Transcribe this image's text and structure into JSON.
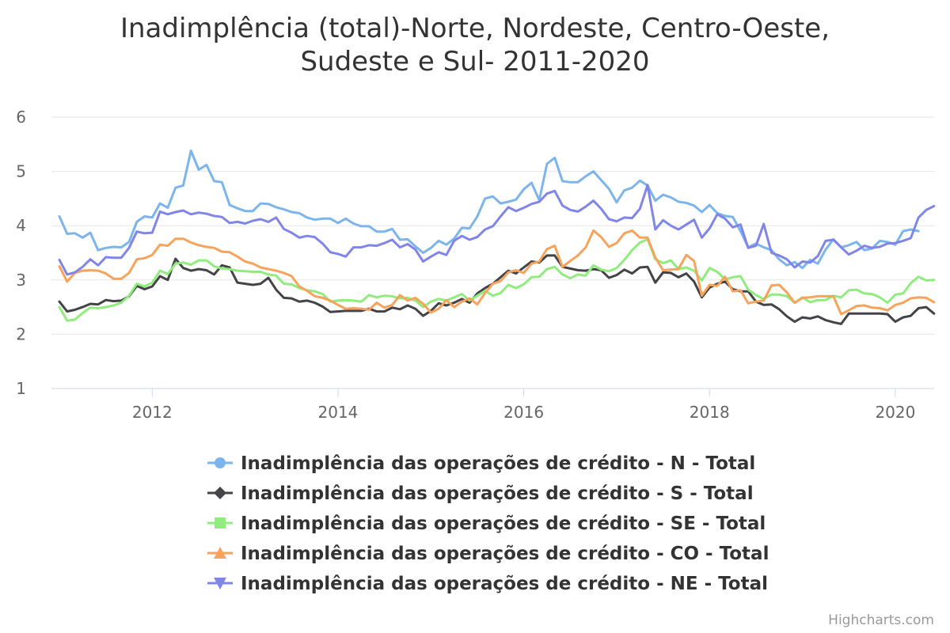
{
  "chart_data": {
    "type": "line",
    "title_lines": [
      "Inadimplência (total)-Norte, Nordeste, Centro-Oeste,",
      "Sudeste e Sul- 2011-2020"
    ],
    "credits": "Highcharts.com",
    "xlabel": "",
    "ylabel": "",
    "x_start": "2011-01",
    "x_end": "2020-05",
    "x_ticks": [
      "2012",
      "2014",
      "2016",
      "2018",
      "2020"
    ],
    "y_ticks": [
      "1",
      "2",
      "3",
      "4",
      "5",
      "6"
    ],
    "ylim": [
      1,
      6
    ],
    "legend_position": "bottom",
    "grid": true,
    "series": [
      {
        "name": "Inadimplência das operações de crédito - N - Total",
        "color": "#7cb5ec",
        "marker": "circle",
        "values": [
          4.17,
          3.85,
          3.86,
          3.78,
          3.87,
          3.55,
          3.59,
          3.61,
          3.6,
          3.7,
          4.07,
          4.17,
          4.15,
          4.41,
          4.33,
          4.7,
          4.74,
          5.38,
          5.03,
          5.12,
          4.82,
          4.8,
          4.38,
          4.32,
          4.27,
          4.27,
          4.41,
          4.4,
          4.34,
          4.3,
          4.25,
          4.23,
          4.15,
          4.11,
          4.13,
          4.13,
          4.05,
          4.13,
          4.04,
          3.99,
          3.99,
          3.89,
          3.89,
          3.94,
          3.74,
          3.75,
          3.62,
          3.5,
          3.59,
          3.72,
          3.65,
          3.76,
          3.96,
          3.95,
          4.17,
          4.5,
          4.54,
          4.41,
          4.44,
          4.48,
          4.67,
          4.79,
          4.47,
          5.14,
          5.25,
          4.82,
          4.8,
          4.8,
          4.91,
          5.0,
          4.84,
          4.68,
          4.43,
          4.65,
          4.7,
          4.83,
          4.74,
          4.46,
          4.57,
          4.52,
          4.44,
          4.42,
          4.37,
          4.25,
          4.38,
          4.23,
          4.18,
          4.16,
          3.9,
          3.6,
          3.67,
          3.6,
          3.55,
          3.38,
          3.27,
          3.33,
          3.22,
          3.37,
          3.3,
          3.56,
          3.75,
          3.6,
          3.64,
          3.7,
          3.55,
          3.58,
          3.72,
          3.7,
          3.65,
          3.9,
          3.93,
          3.9
        ]
      },
      {
        "name": "Inadimplência das operações de crédito - S - Total",
        "color": "#434348",
        "marker": "diamond",
        "values": [
          2.6,
          2.42,
          2.45,
          2.5,
          2.56,
          2.55,
          2.63,
          2.61,
          2.62,
          2.7,
          2.89,
          2.83,
          2.88,
          3.07,
          3.0,
          3.39,
          3.22,
          3.17,
          3.2,
          3.18,
          3.1,
          3.27,
          3.23,
          2.95,
          2.93,
          2.91,
          2.93,
          3.04,
          2.82,
          2.67,
          2.66,
          2.6,
          2.62,
          2.58,
          2.51,
          2.41,
          2.42,
          2.43,
          2.43,
          2.43,
          2.47,
          2.42,
          2.42,
          2.49,
          2.46,
          2.53,
          2.47,
          2.34,
          2.43,
          2.57,
          2.53,
          2.58,
          2.65,
          2.58,
          2.75,
          2.85,
          2.93,
          3.05,
          3.17,
          3.12,
          3.23,
          3.34,
          3.32,
          3.45,
          3.45,
          3.24,
          3.21,
          3.18,
          3.17,
          3.2,
          3.18,
          3.04,
          3.09,
          3.19,
          3.12,
          3.23,
          3.24,
          2.95,
          3.14,
          3.13,
          3.05,
          3.12,
          2.97,
          2.68,
          2.86,
          2.93,
          2.97,
          2.83,
          2.79,
          2.79,
          2.6,
          2.54,
          2.55,
          2.46,
          2.33,
          2.23,
          2.31,
          2.29,
          2.33,
          2.26,
          2.22,
          2.19,
          2.38,
          2.38,
          2.38,
          2.38,
          2.38,
          2.37,
          2.23,
          2.31,
          2.34,
          2.48,
          2.5,
          2.38
        ]
      },
      {
        "name": "Inadimplência das operações de crédito - SE - Total",
        "color": "#90ed7d",
        "marker": "square",
        "values": [
          2.5,
          2.25,
          2.27,
          2.39,
          2.49,
          2.48,
          2.5,
          2.53,
          2.58,
          2.71,
          2.93,
          2.88,
          2.95,
          3.17,
          3.11,
          3.3,
          3.32,
          3.28,
          3.36,
          3.36,
          3.25,
          3.21,
          3.2,
          3.17,
          3.16,
          3.15,
          3.15,
          3.1,
          3.08,
          2.93,
          2.92,
          2.85,
          2.81,
          2.79,
          2.74,
          2.6,
          2.62,
          2.63,
          2.62,
          2.6,
          2.72,
          2.68,
          2.71,
          2.7,
          2.66,
          2.67,
          2.62,
          2.5,
          2.6,
          2.65,
          2.62,
          2.68,
          2.74,
          2.62,
          2.71,
          2.8,
          2.71,
          2.76,
          2.91,
          2.85,
          2.92,
          3.05,
          3.06,
          3.2,
          3.24,
          3.1,
          3.03,
          3.1,
          3.08,
          3.27,
          3.19,
          3.16,
          3.22,
          3.37,
          3.55,
          3.69,
          3.75,
          3.38,
          3.31,
          3.36,
          3.2,
          3.23,
          3.17,
          2.99,
          3.22,
          3.15,
          3.01,
          3.05,
          3.07,
          2.82,
          2.72,
          2.65,
          2.73,
          2.73,
          2.7,
          2.58,
          2.68,
          2.59,
          2.63,
          2.63,
          2.71,
          2.68,
          2.81,
          2.82,
          2.75,
          2.74,
          2.68,
          2.58,
          2.73,
          2.75,
          2.94,
          3.06,
          2.99,
          3.0
        ]
      },
      {
        "name": "Inadimplência das operações de crédito - CO - Total",
        "color": "#f7a35c",
        "marker": "triangle",
        "values": [
          3.25,
          2.97,
          3.13,
          3.17,
          3.18,
          3.17,
          3.12,
          3.02,
          3.02,
          3.13,
          3.38,
          3.4,
          3.46,
          3.65,
          3.63,
          3.76,
          3.76,
          3.69,
          3.64,
          3.61,
          3.59,
          3.52,
          3.51,
          3.43,
          3.34,
          3.3,
          3.23,
          3.2,
          3.17,
          3.13,
          3.07,
          2.88,
          2.8,
          2.7,
          2.67,
          2.62,
          2.54,
          2.47,
          2.48,
          2.47,
          2.45,
          2.58,
          2.49,
          2.54,
          2.72,
          2.62,
          2.67,
          2.56,
          2.4,
          2.47,
          2.63,
          2.5,
          2.6,
          2.66,
          2.55,
          2.76,
          2.93,
          2.98,
          3.14,
          3.18,
          3.13,
          3.3,
          3.34,
          3.57,
          3.63,
          3.24,
          3.35,
          3.45,
          3.6,
          3.91,
          3.79,
          3.61,
          3.68,
          3.86,
          3.91,
          3.78,
          3.78,
          3.41,
          3.18,
          3.19,
          3.2,
          3.46,
          3.35,
          2.71,
          2.91,
          2.89,
          3.06,
          2.79,
          2.81,
          2.57,
          2.6,
          2.62,
          2.9,
          2.91,
          2.77,
          2.58,
          2.67,
          2.68,
          2.7,
          2.7,
          2.7,
          2.37,
          2.44,
          2.52,
          2.53,
          2.49,
          2.48,
          2.44,
          2.54,
          2.58,
          2.66,
          2.68,
          2.67,
          2.59
        ]
      },
      {
        "name": "Inadimplência das operações de crédito - NE - Total",
        "color": "#8085e9",
        "marker": "triangle-down",
        "values": [
          3.37,
          3.1,
          3.14,
          3.24,
          3.38,
          3.27,
          3.42,
          3.41,
          3.41,
          3.59,
          3.89,
          3.86,
          3.87,
          4.26,
          4.21,
          4.25,
          4.28,
          4.21,
          4.24,
          4.22,
          4.18,
          4.16,
          4.05,
          4.07,
          4.04,
          4.09,
          4.12,
          4.07,
          4.15,
          3.94,
          3.87,
          3.78,
          3.81,
          3.79,
          3.67,
          3.51,
          3.48,
          3.43,
          3.6,
          3.6,
          3.64,
          3.63,
          3.68,
          3.74,
          3.6,
          3.66,
          3.56,
          3.34,
          3.43,
          3.51,
          3.46,
          3.72,
          3.81,
          3.74,
          3.79,
          3.93,
          3.99,
          4.17,
          4.34,
          4.27,
          4.33,
          4.4,
          4.44,
          4.59,
          4.64,
          4.37,
          4.29,
          4.26,
          4.35,
          4.46,
          4.31,
          4.12,
          4.08,
          4.15,
          4.14,
          4.31,
          4.75,
          3.93,
          4.1,
          4.0,
          3.93,
          4.02,
          4.11,
          3.78,
          3.95,
          4.21,
          4.13,
          3.97,
          4.02,
          3.59,
          3.63,
          4.03,
          3.5,
          3.45,
          3.38,
          3.23,
          3.34,
          3.32,
          3.44,
          3.72,
          3.74,
          3.6,
          3.47,
          3.54,
          3.63,
          3.59,
          3.61,
          3.67,
          3.68,
          3.72,
          3.77,
          4.15,
          4.29,
          4.36
        ]
      }
    ]
  }
}
